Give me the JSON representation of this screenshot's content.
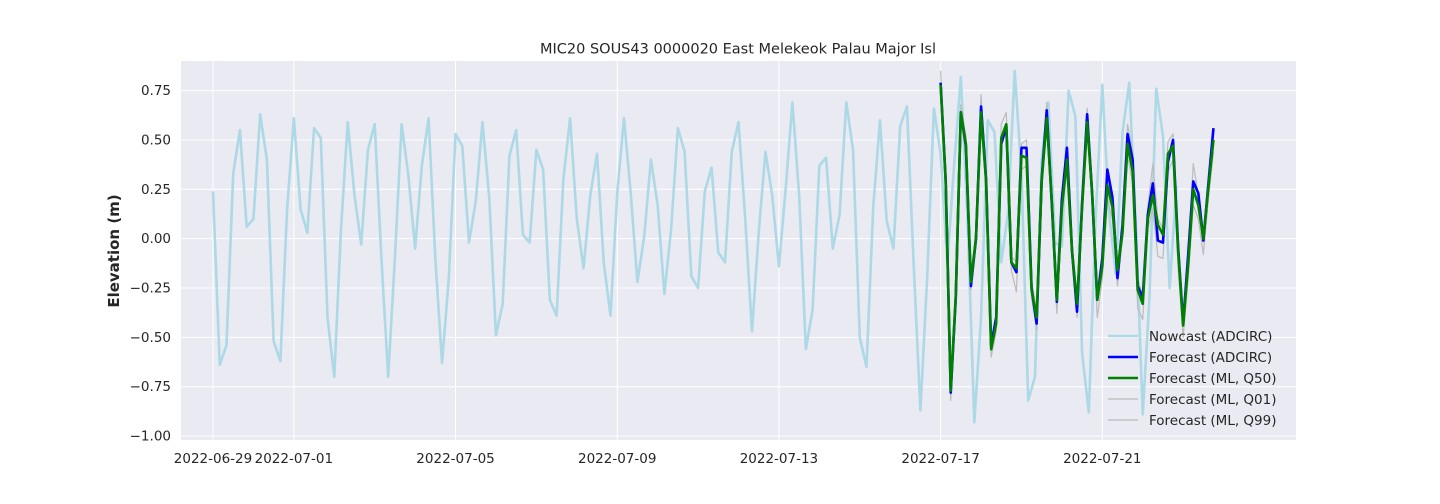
{
  "chart_data": {
    "type": "line",
    "title": "MIC20 SOUS43 0000020 East Melekeok Palau Major Isl",
    "xlabel": "",
    "ylabel": "Elevation (m)",
    "xlim": [
      "2022-06-28T05:00",
      "2022-07-25T19:00"
    ],
    "ylim": [
      -1.02,
      0.9
    ],
    "yticks": [
      -1.0,
      -0.75,
      -0.5,
      -0.25,
      0.0,
      0.25,
      0.5,
      0.75
    ],
    "ytick_labels": [
      "−1.00",
      "−0.75",
      "−0.50",
      "−0.25",
      "0.00",
      "0.25",
      "0.50",
      "0.75"
    ],
    "xticks": [
      "2022-06-29",
      "2022-07-01",
      "2022-07-05",
      "2022-07-09",
      "2022-07-13",
      "2022-07-17",
      "2022-07-21"
    ],
    "grid": true,
    "legend_position": "lower right",
    "colors": {
      "background": "#eaeaf2",
      "grid": "#ffffff",
      "nowcast": "#add8e6",
      "forecast_adcirc": "#0000ff",
      "forecast_ml_q50": "#008000",
      "forecast_ml_quantile": "#bbbbbb"
    },
    "nowcast": {
      "name": "Nowcast (ADCIRC)",
      "x_start": "2022-06-29T00:00",
      "step_hours": 4,
      "values": [
        0.24,
        -0.64,
        -0.54,
        0.33,
        0.55,
        0.06,
        0.1,
        0.63,
        0.4,
        -0.52,
        -0.62,
        0.15,
        0.61,
        0.15,
        0.03,
        0.56,
        0.51,
        -0.4,
        -0.7,
        0.05,
        0.59,
        0.22,
        -0.03,
        0.45,
        0.58,
        -0.1,
        -0.7,
        -0.1,
        0.58,
        0.32,
        -0.05,
        0.37,
        0.61,
        -0.1,
        -0.63,
        -0.2,
        0.53,
        0.47,
        -0.02,
        0.19,
        0.59,
        0.21,
        -0.49,
        -0.33,
        0.42,
        0.55,
        0.02,
        -0.02,
        0.45,
        0.35,
        -0.31,
        -0.39,
        0.3,
        0.61,
        0.1,
        -0.15,
        0.22,
        0.43,
        -0.12,
        -0.39,
        0.23,
        0.61,
        0.23,
        -0.22,
        0.01,
        0.4,
        0.17,
        -0.28,
        0.05,
        0.56,
        0.44,
        -0.19,
        -0.25,
        0.24,
        0.36,
        -0.07,
        -0.12,
        0.44,
        0.59,
        0.1,
        -0.47,
        0.03,
        0.44,
        0.22,
        -0.14,
        0.25,
        0.69,
        0.22,
        -0.56,
        -0.36,
        0.37,
        0.41,
        -0.05,
        0.12,
        0.69,
        0.45,
        -0.5,
        -0.65,
        0.16,
        0.6,
        0.09,
        -0.05,
        0.57,
        0.67,
        -0.13,
        -0.87,
        -0.2,
        0.66,
        0.43,
        -0.12,
        0.37,
        0.82,
        0.1,
        -0.93,
        -0.4,
        0.6,
        0.54,
        -0.12,
        0.13,
        0.85,
        0.33,
        -0.82,
        -0.7,
        0.4,
        0.69,
        -0.02,
        -0.04,
        0.75,
        0.62,
        -0.58,
        -0.88,
        0.1,
        0.78,
        0.13,
        -0.18,
        0.54,
        0.79,
        0.05,
        -0.89,
        -0.3,
        0.76,
        0.52,
        -0.25,
        0.27
      ]
    },
    "forecast_x_start": "2022-07-17T00:00",
    "forecast_step_hours": 3,
    "series": [
      {
        "name": "Forecast (ADCIRC)",
        "values": [
          0.79,
          0.3,
          -0.78,
          -0.3,
          0.64,
          0.47,
          -0.24,
          0.0,
          0.67,
          0.3,
          -0.54,
          -0.4,
          0.48,
          0.57,
          -0.12,
          -0.17,
          0.46,
          0.46,
          -0.25,
          -0.43,
          0.3,
          0.65,
          0.18,
          -0.32,
          0.2,
          0.46,
          -0.06,
          -0.37,
          0.18,
          0.63,
          0.22,
          -0.31,
          -0.1,
          0.35,
          0.21,
          -0.2,
          0.07,
          0.53,
          0.4,
          -0.24,
          -0.3,
          0.12,
          0.28,
          -0.01,
          -0.02,
          0.39,
          0.5,
          -0.04,
          -0.43,
          -0.08,
          0.29,
          0.23,
          -0.01,
          0.28,
          0.56
        ]
      },
      {
        "name": "Forecast (ML, Q50)",
        "values": [
          0.78,
          0.29,
          -0.77,
          -0.29,
          0.64,
          0.48,
          -0.22,
          0.0,
          0.64,
          0.29,
          -0.56,
          -0.43,
          0.51,
          0.58,
          -0.12,
          -0.15,
          0.42,
          0.41,
          -0.26,
          -0.4,
          0.29,
          0.61,
          0.19,
          -0.31,
          0.16,
          0.4,
          -0.06,
          -0.33,
          0.16,
          0.59,
          0.23,
          -0.31,
          -0.14,
          0.27,
          0.16,
          -0.16,
          0.03,
          0.48,
          0.34,
          -0.26,
          -0.33,
          0.1,
          0.22,
          0.07,
          0.02,
          0.43,
          0.47,
          -0.06,
          -0.44,
          -0.13,
          0.25,
          0.17,
          0.0,
          0.26,
          0.5
        ]
      },
      {
        "name": "Forecast (ML, Q01)",
        "values": [
          0.74,
          0.25,
          -0.82,
          -0.33,
          0.6,
          0.44,
          -0.26,
          -0.03,
          0.6,
          0.25,
          -0.6,
          -0.47,
          0.47,
          0.54,
          -0.16,
          -0.27,
          0.35,
          0.37,
          -0.3,
          -0.46,
          0.25,
          0.57,
          0.15,
          -0.38,
          0.1,
          0.35,
          -0.1,
          -0.4,
          0.1,
          0.55,
          0.19,
          -0.4,
          -0.2,
          0.2,
          0.1,
          -0.24,
          0.0,
          0.42,
          0.28,
          -0.35,
          -0.41,
          0.05,
          0.15,
          -0.09,
          -0.1,
          0.34,
          0.4,
          -0.15,
          -0.5,
          -0.2,
          0.17,
          0.1,
          -0.08,
          0.2,
          0.44
        ]
      },
      {
        "name": "Forecast (ML, Q99)",
        "values": [
          0.85,
          0.34,
          -0.73,
          -0.25,
          0.68,
          0.52,
          -0.18,
          0.04,
          0.73,
          0.33,
          -0.52,
          -0.38,
          0.58,
          0.64,
          -0.09,
          -0.12,
          0.48,
          0.5,
          -0.22,
          -0.36,
          0.33,
          0.69,
          0.24,
          -0.27,
          0.23,
          0.47,
          -0.02,
          -0.29,
          0.21,
          0.66,
          0.28,
          -0.25,
          -0.08,
          0.33,
          0.22,
          -0.12,
          0.07,
          0.58,
          0.44,
          -0.2,
          -0.29,
          0.16,
          0.38,
          0.1,
          0.05,
          0.49,
          0.53,
          -0.02,
          -0.38,
          -0.07,
          0.38,
          0.22,
          0.03,
          0.3,
          0.54
        ]
      }
    ]
  }
}
